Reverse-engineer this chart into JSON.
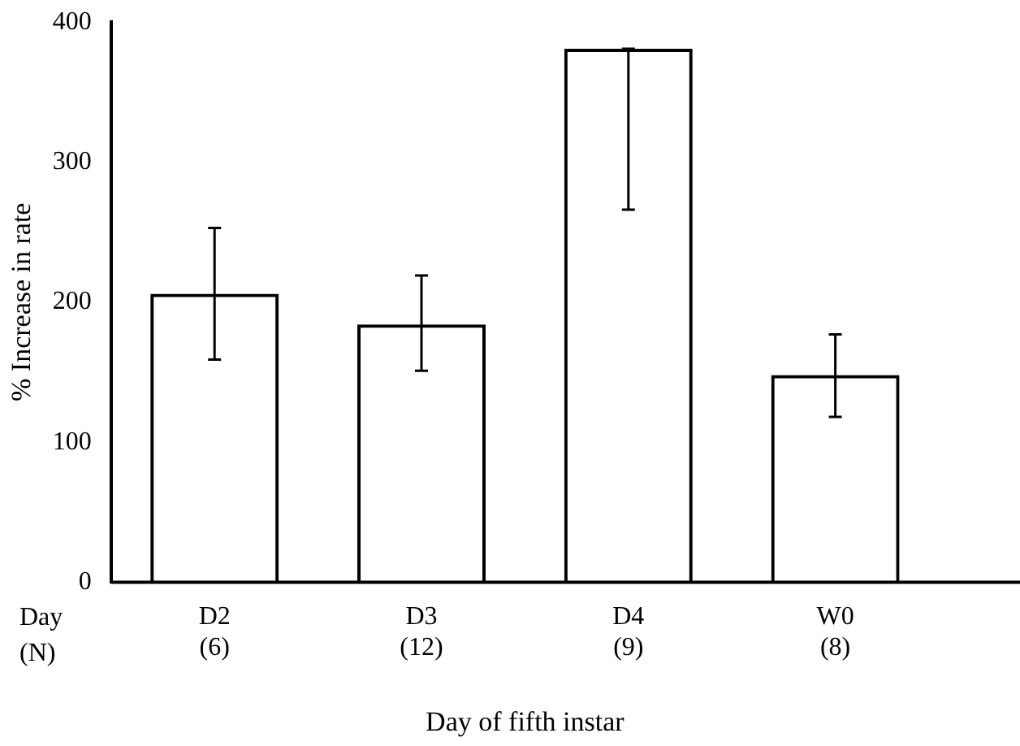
{
  "chart_data": {
    "type": "bar",
    "categories": [
      "D2 (6)",
      "D3 (12)",
      "D4 (9)",
      "W0 (8)"
    ],
    "values": [
      206,
      184,
      381,
      148
    ],
    "errors": [
      [
        159,
        253
      ],
      [
        151,
        219
      ],
      [
        266,
        381
      ],
      [
        118,
        177
      ]
    ],
    "color": "#000000",
    "xlabel": "Day of fifth instar",
    "ylabel": "% Increase in rate",
    "annotations": [
      "Day",
      "(N)"
    ],
    "ylim": [
      0,
      400
    ],
    "yticks": [
      0,
      100,
      200,
      300,
      400
    ],
    "grid": false,
    "legend": false
  }
}
